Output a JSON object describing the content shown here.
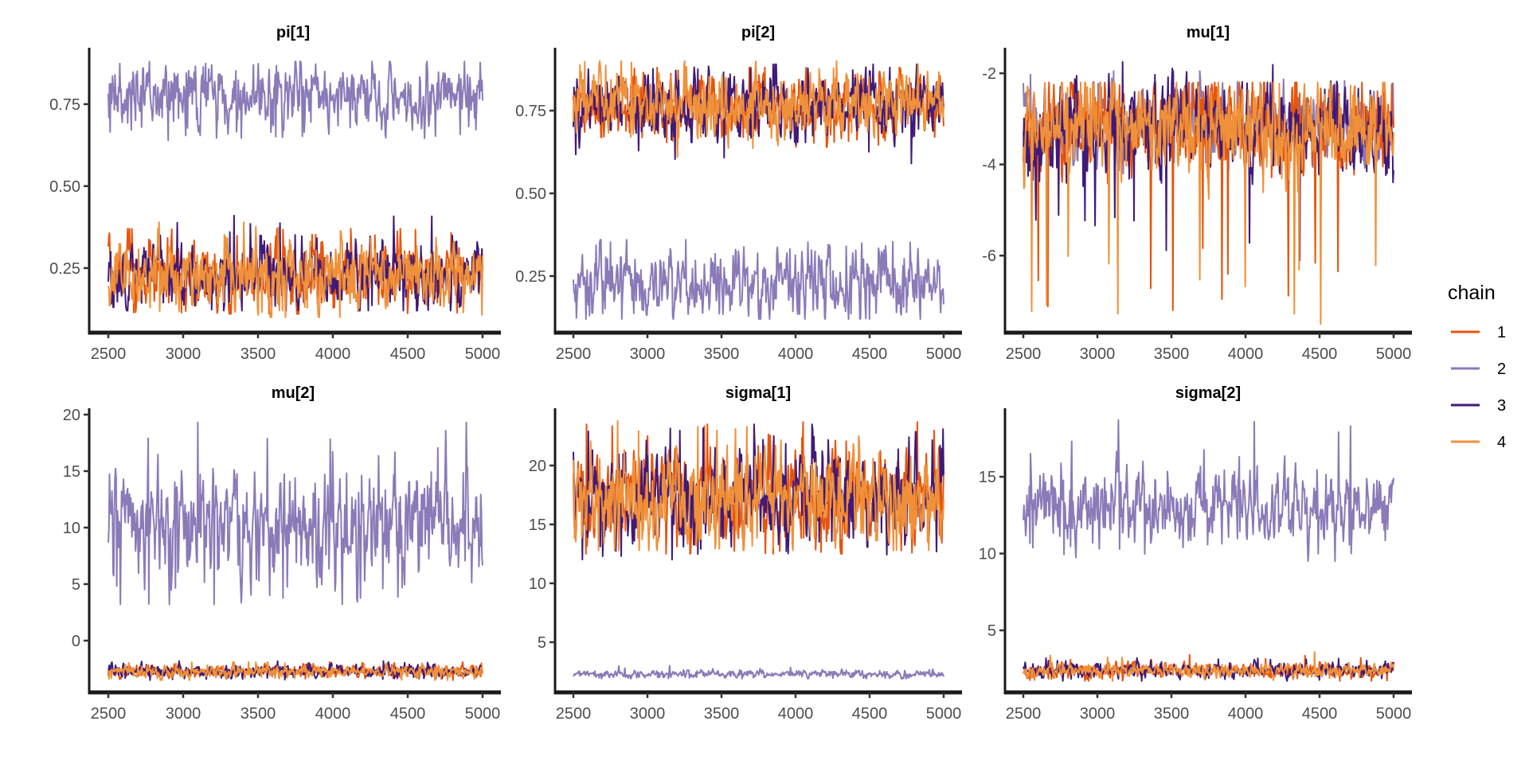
{
  "chart_data": {
    "type": "line",
    "title": "",
    "xlabel": "",
    "ylabel": "",
    "legend": {
      "title": "chain",
      "placement": "right",
      "entries": [
        {
          "label": "1",
          "color": "#E6550D"
        },
        {
          "label": "2",
          "color": "#8B7AB8"
        },
        {
          "label": "3",
          "color": "#3F1A7A"
        },
        {
          "label": "4",
          "color": "#F0913A"
        }
      ]
    },
    "x_range": [
      2500,
      5000
    ],
    "x_ticks": [
      "2500",
      "3000",
      "3500",
      "4000",
      "4500",
      "5000"
    ],
    "panels": [
      {
        "title": "pi[1]",
        "ylim": [
          0.053,
          0.922
        ],
        "y_ticks": [
          {
            "value": 0.25,
            "label": "0.25"
          },
          {
            "value": 0.5,
            "label": "0.50"
          },
          {
            "value": 0.75,
            "label": "0.75"
          }
        ],
        "series": [
          {
            "chain": "1",
            "mean": 0.23,
            "sd": 0.045,
            "min": 0.11,
            "max": 0.37
          },
          {
            "chain": "2",
            "mean": 0.77,
            "sd": 0.045,
            "min": 0.64,
            "max": 0.88
          },
          {
            "chain": "3",
            "mean": 0.23,
            "sd": 0.045,
            "min": 0.12,
            "max": 0.41
          },
          {
            "chain": "4",
            "mean": 0.23,
            "sd": 0.045,
            "min": 0.1,
            "max": 0.39
          }
        ]
      },
      {
        "title": "pi[2]",
        "ylim": [
          0.079,
          0.94
        ],
        "y_ticks": [
          {
            "value": 0.25,
            "label": "0.25"
          },
          {
            "value": 0.5,
            "label": "0.50"
          },
          {
            "value": 0.75,
            "label": "0.75"
          }
        ],
        "series": [
          {
            "chain": "1",
            "mean": 0.77,
            "sd": 0.045,
            "min": 0.64,
            "max": 0.88
          },
          {
            "chain": "2",
            "mean": 0.23,
            "sd": 0.045,
            "min": 0.12,
            "max": 0.36
          },
          {
            "chain": "3",
            "mean": 0.77,
            "sd": 0.045,
            "min": 0.59,
            "max": 0.89
          },
          {
            "chain": "4",
            "mean": 0.77,
            "sd": 0.045,
            "min": 0.61,
            "max": 0.9
          }
        ]
      },
      {
        "title": "mu[1]",
        "ylim": [
          -7.69,
          -1.44
        ],
        "y_ticks": [
          {
            "value": -6,
            "label": "-6"
          },
          {
            "value": -4,
            "label": "-4"
          },
          {
            "value": -2,
            "label": "-2"
          }
        ],
        "series": [
          {
            "chain": "1",
            "mean": -3.2,
            "sd": 0.45,
            "min": -7.2,
            "max": -2.2
          },
          {
            "chain": "2",
            "mean": -3.1,
            "sd": 0.35,
            "min": -4.2,
            "max": -1.95
          },
          {
            "chain": "3",
            "mean": -3.2,
            "sd": 0.45,
            "min": -6.1,
            "max": -1.75
          },
          {
            "chain": "4",
            "mean": -3.2,
            "sd": 0.45,
            "min": -7.5,
            "max": -2.2
          }
        ]
      },
      {
        "title": "mu[2]",
        "ylim": [
          -4.58,
          20.56
        ],
        "y_ticks": [
          {
            "value": 0,
            "label": "0"
          },
          {
            "value": 5,
            "label": "5"
          },
          {
            "value": 10,
            "label": "10"
          },
          {
            "value": 15,
            "label": "15"
          },
          {
            "value": 20,
            "label": "20"
          }
        ],
        "series": [
          {
            "chain": "1",
            "mean": -2.7,
            "sd": 0.25,
            "min": -3.5,
            "max": -1.9
          },
          {
            "chain": "2",
            "mean": 10.2,
            "sd": 2.3,
            "min": 3.2,
            "max": 19.3
          },
          {
            "chain": "3",
            "mean": -2.7,
            "sd": 0.25,
            "min": -3.5,
            "max": -1.8
          },
          {
            "chain": "4",
            "mean": -2.7,
            "sd": 0.25,
            "min": -3.5,
            "max": -1.9
          }
        ]
      },
      {
        "title": "sigma[1]",
        "ylim": [
          0.74,
          24.86
        ],
        "y_ticks": [
          {
            "value": 5,
            "label": "5"
          },
          {
            "value": 10,
            "label": "10"
          },
          {
            "value": 15,
            "label": "15"
          },
          {
            "value": 20,
            "label": "20"
          }
        ],
        "series": [
          {
            "chain": "1",
            "mean": 17.2,
            "sd": 1.8,
            "min": 12.5,
            "max": 23.7
          },
          {
            "chain": "2",
            "mean": 2.3,
            "sd": 0.15,
            "min": 1.9,
            "max": 3.0
          },
          {
            "chain": "3",
            "mean": 17.2,
            "sd": 1.8,
            "min": 12.0,
            "max": 23.5
          },
          {
            "chain": "4",
            "mean": 17.2,
            "sd": 1.8,
            "min": 12.8,
            "max": 23.8
          }
        ]
      },
      {
        "title": "sigma[2]",
        "ylim": [
          0.96,
          19.46
        ],
        "y_ticks": [
          {
            "value": 5,
            "label": "5"
          },
          {
            "value": 10,
            "label": "10"
          },
          {
            "value": 15,
            "label": "15"
          }
        ],
        "series": [
          {
            "chain": "1",
            "mean": 2.4,
            "sd": 0.2,
            "min": 1.7,
            "max": 3.4
          },
          {
            "chain": "2",
            "mean": 13.0,
            "sd": 1.1,
            "min": 9.5,
            "max": 18.7
          },
          {
            "chain": "3",
            "mean": 2.4,
            "sd": 0.2,
            "min": 1.7,
            "max": 3.2
          },
          {
            "chain": "4",
            "mean": 2.4,
            "sd": 0.2,
            "min": 1.7,
            "max": 3.6
          }
        ]
      }
    ]
  }
}
